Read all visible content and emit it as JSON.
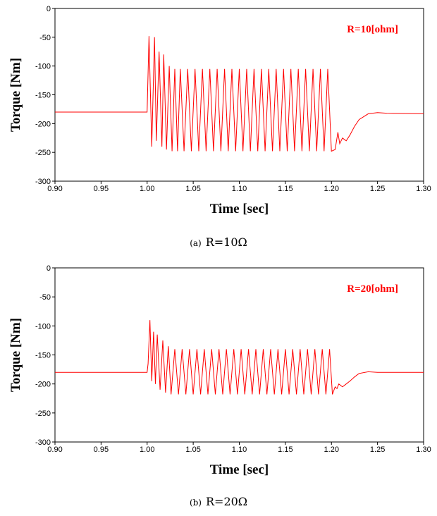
{
  "chart_data": [
    {
      "type": "line",
      "title": "",
      "xlabel": "Time [sec]",
      "ylabel": "Torque [Nm]",
      "xlim": [
        0.9,
        1.3
      ],
      "ylim": [
        -300,
        0
      ],
      "xticks": [
        "0.90",
        "0.95",
        "1.00",
        "1.05",
        "1.10",
        "1.15",
        "1.20",
        "1.25",
        "1.30"
      ],
      "yticks": [
        "0",
        "-50",
        "-100",
        "-150",
        "-200",
        "-250",
        "-300"
      ],
      "legend": "R=10[ohm]",
      "legend_position": "top-right",
      "color": "#ff0000",
      "caption_tag": "(a)",
      "caption_text": "R=10Ω",
      "series": [
        {
          "x": [
            0.9,
            1.0,
            1.002,
            1.005,
            1.008,
            1.01,
            1.013,
            1.016,
            1.018,
            1.021,
            1.024,
            1.027,
            1.03,
            1.033,
            1.036,
            1.04,
            1.044,
            1.048,
            1.052,
            1.056,
            1.06,
            1.064,
            1.068,
            1.072,
            1.076,
            1.08,
            1.084,
            1.088,
            1.092,
            1.096,
            1.1,
            1.104,
            1.108,
            1.112,
            1.116,
            1.12,
            1.124,
            1.128,
            1.132,
            1.136,
            1.14,
            1.144,
            1.148,
            1.152,
            1.156,
            1.16,
            1.164,
            1.168,
            1.172,
            1.176,
            1.18,
            1.184,
            1.188,
            1.192,
            1.196,
            1.2,
            1.204,
            1.207,
            1.209,
            1.212,
            1.216,
            1.22,
            1.225,
            1.23,
            1.24,
            1.25,
            1.26,
            1.3
          ],
          "y": [
            -180,
            -180,
            -48,
            -240,
            -50,
            -230,
            -75,
            -240,
            -80,
            -245,
            -100,
            -248,
            -105,
            -248,
            -105,
            -248,
            -105,
            -248,
            -105,
            -248,
            -105,
            -248,
            -105,
            -248,
            -105,
            -248,
            -105,
            -248,
            -105,
            -248,
            -105,
            -248,
            -105,
            -248,
            -105,
            -248,
            -105,
            -248,
            -105,
            -248,
            -105,
            -248,
            -105,
            -248,
            -105,
            -248,
            -105,
            -248,
            -105,
            -248,
            -105,
            -248,
            -105,
            -248,
            -105,
            -248,
            -245,
            -215,
            -235,
            -225,
            -230,
            -220,
            -205,
            -193,
            -183,
            -181,
            -182,
            -183
          ]
        }
      ]
    },
    {
      "type": "line",
      "title": "",
      "xlabel": "Time [sec]",
      "ylabel": "Torque [Nm]",
      "xlim": [
        0.9,
        1.3
      ],
      "ylim": [
        -300,
        0
      ],
      "xticks": [
        "0.90",
        "0.95",
        "1.00",
        "1.05",
        "1.10",
        "1.15",
        "1.20",
        "1.25",
        "1.30"
      ],
      "yticks": [
        "0",
        "-50",
        "-100",
        "-150",
        "-200",
        "-250",
        "-300"
      ],
      "legend": "R=20[ohm]",
      "legend_position": "top-right",
      "color": "#ff0000",
      "caption_tag": "(b)",
      "caption_text": "R=20Ω",
      "series": [
        {
          "x": [
            0.9,
            1.0,
            1.001,
            1.003,
            1.005,
            1.007,
            1.009,
            1.011,
            1.014,
            1.017,
            1.02,
            1.023,
            1.026,
            1.03,
            1.034,
            1.038,
            1.042,
            1.046,
            1.05,
            1.054,
            1.058,
            1.062,
            1.066,
            1.07,
            1.074,
            1.078,
            1.082,
            1.086,
            1.09,
            1.094,
            1.098,
            1.102,
            1.106,
            1.11,
            1.114,
            1.118,
            1.122,
            1.126,
            1.13,
            1.134,
            1.138,
            1.142,
            1.146,
            1.15,
            1.154,
            1.158,
            1.162,
            1.166,
            1.17,
            1.174,
            1.178,
            1.182,
            1.186,
            1.19,
            1.194,
            1.198,
            1.201,
            1.204,
            1.206,
            1.208,
            1.212,
            1.216,
            1.22,
            1.225,
            1.23,
            1.24,
            1.25,
            1.26,
            1.3
          ],
          "y": [
            -180,
            -180,
            -165,
            -90,
            -195,
            -110,
            -200,
            -115,
            -210,
            -125,
            -215,
            -135,
            -218,
            -140,
            -218,
            -140,
            -218,
            -140,
            -218,
            -140,
            -218,
            -140,
            -218,
            -140,
            -218,
            -140,
            -218,
            -140,
            -218,
            -140,
            -218,
            -140,
            -218,
            -140,
            -218,
            -140,
            -218,
            -140,
            -218,
            -140,
            -218,
            -140,
            -218,
            -140,
            -218,
            -140,
            -218,
            -140,
            -218,
            -140,
            -218,
            -140,
            -218,
            -140,
            -218,
            -140,
            -218,
            -205,
            -208,
            -200,
            -205,
            -200,
            -195,
            -188,
            -182,
            -179,
            -180,
            -180,
            -180
          ]
        }
      ]
    }
  ]
}
